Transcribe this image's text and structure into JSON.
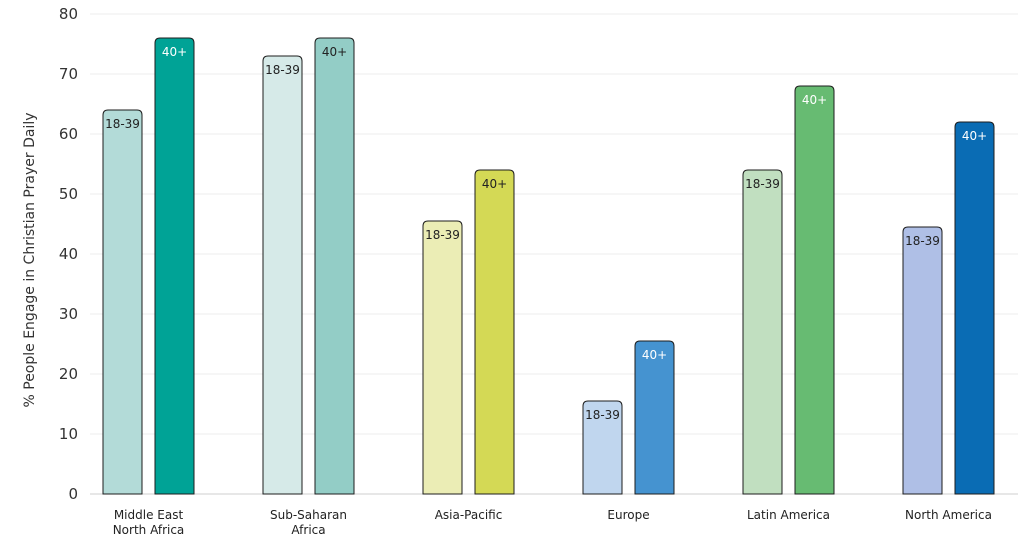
{
  "chart_data": {
    "type": "bar",
    "ylabel": "% People Engage in Christian Prayer Daily",
    "ylim": [
      0,
      80
    ],
    "yticks": [
      0,
      10,
      20,
      30,
      40,
      50,
      60,
      70,
      80
    ],
    "grid": true,
    "categories": [
      [
        "Middle East",
        "North Africa"
      ],
      [
        "Sub-Saharan",
        "Africa"
      ],
      [
        "Asia-Pacific"
      ],
      [
        "Europe"
      ],
      [
        "Latin America"
      ],
      [
        "North America"
      ]
    ],
    "series": [
      {
        "name": "18-39",
        "values": [
          64,
          73,
          45.5,
          15.5,
          54,
          44.5
        ]
      },
      {
        "name": "40+",
        "values": [
          76,
          76,
          54,
          25.5,
          68,
          62
        ]
      }
    ],
    "colors": {
      "18-39": [
        "#b3dbd8",
        "#d6eae8",
        "#ebedb5",
        "#c0d6ee",
        "#c1dfc0",
        "#afbfe6"
      ],
      "40+": [
        "#00a396",
        "#93cdc6",
        "#d4d955",
        "#4593d0",
        "#67bb72",
        "#0a6cb4"
      ]
    },
    "label_colors": {
      "18-39": [
        "#222222",
        "#222222",
        "#222222",
        "#222222",
        "#222222",
        "#222222"
      ],
      "40+": [
        "#ffffff",
        "#222222",
        "#222222",
        "#ffffff",
        "#ffffff",
        "#ffffff"
      ]
    }
  }
}
